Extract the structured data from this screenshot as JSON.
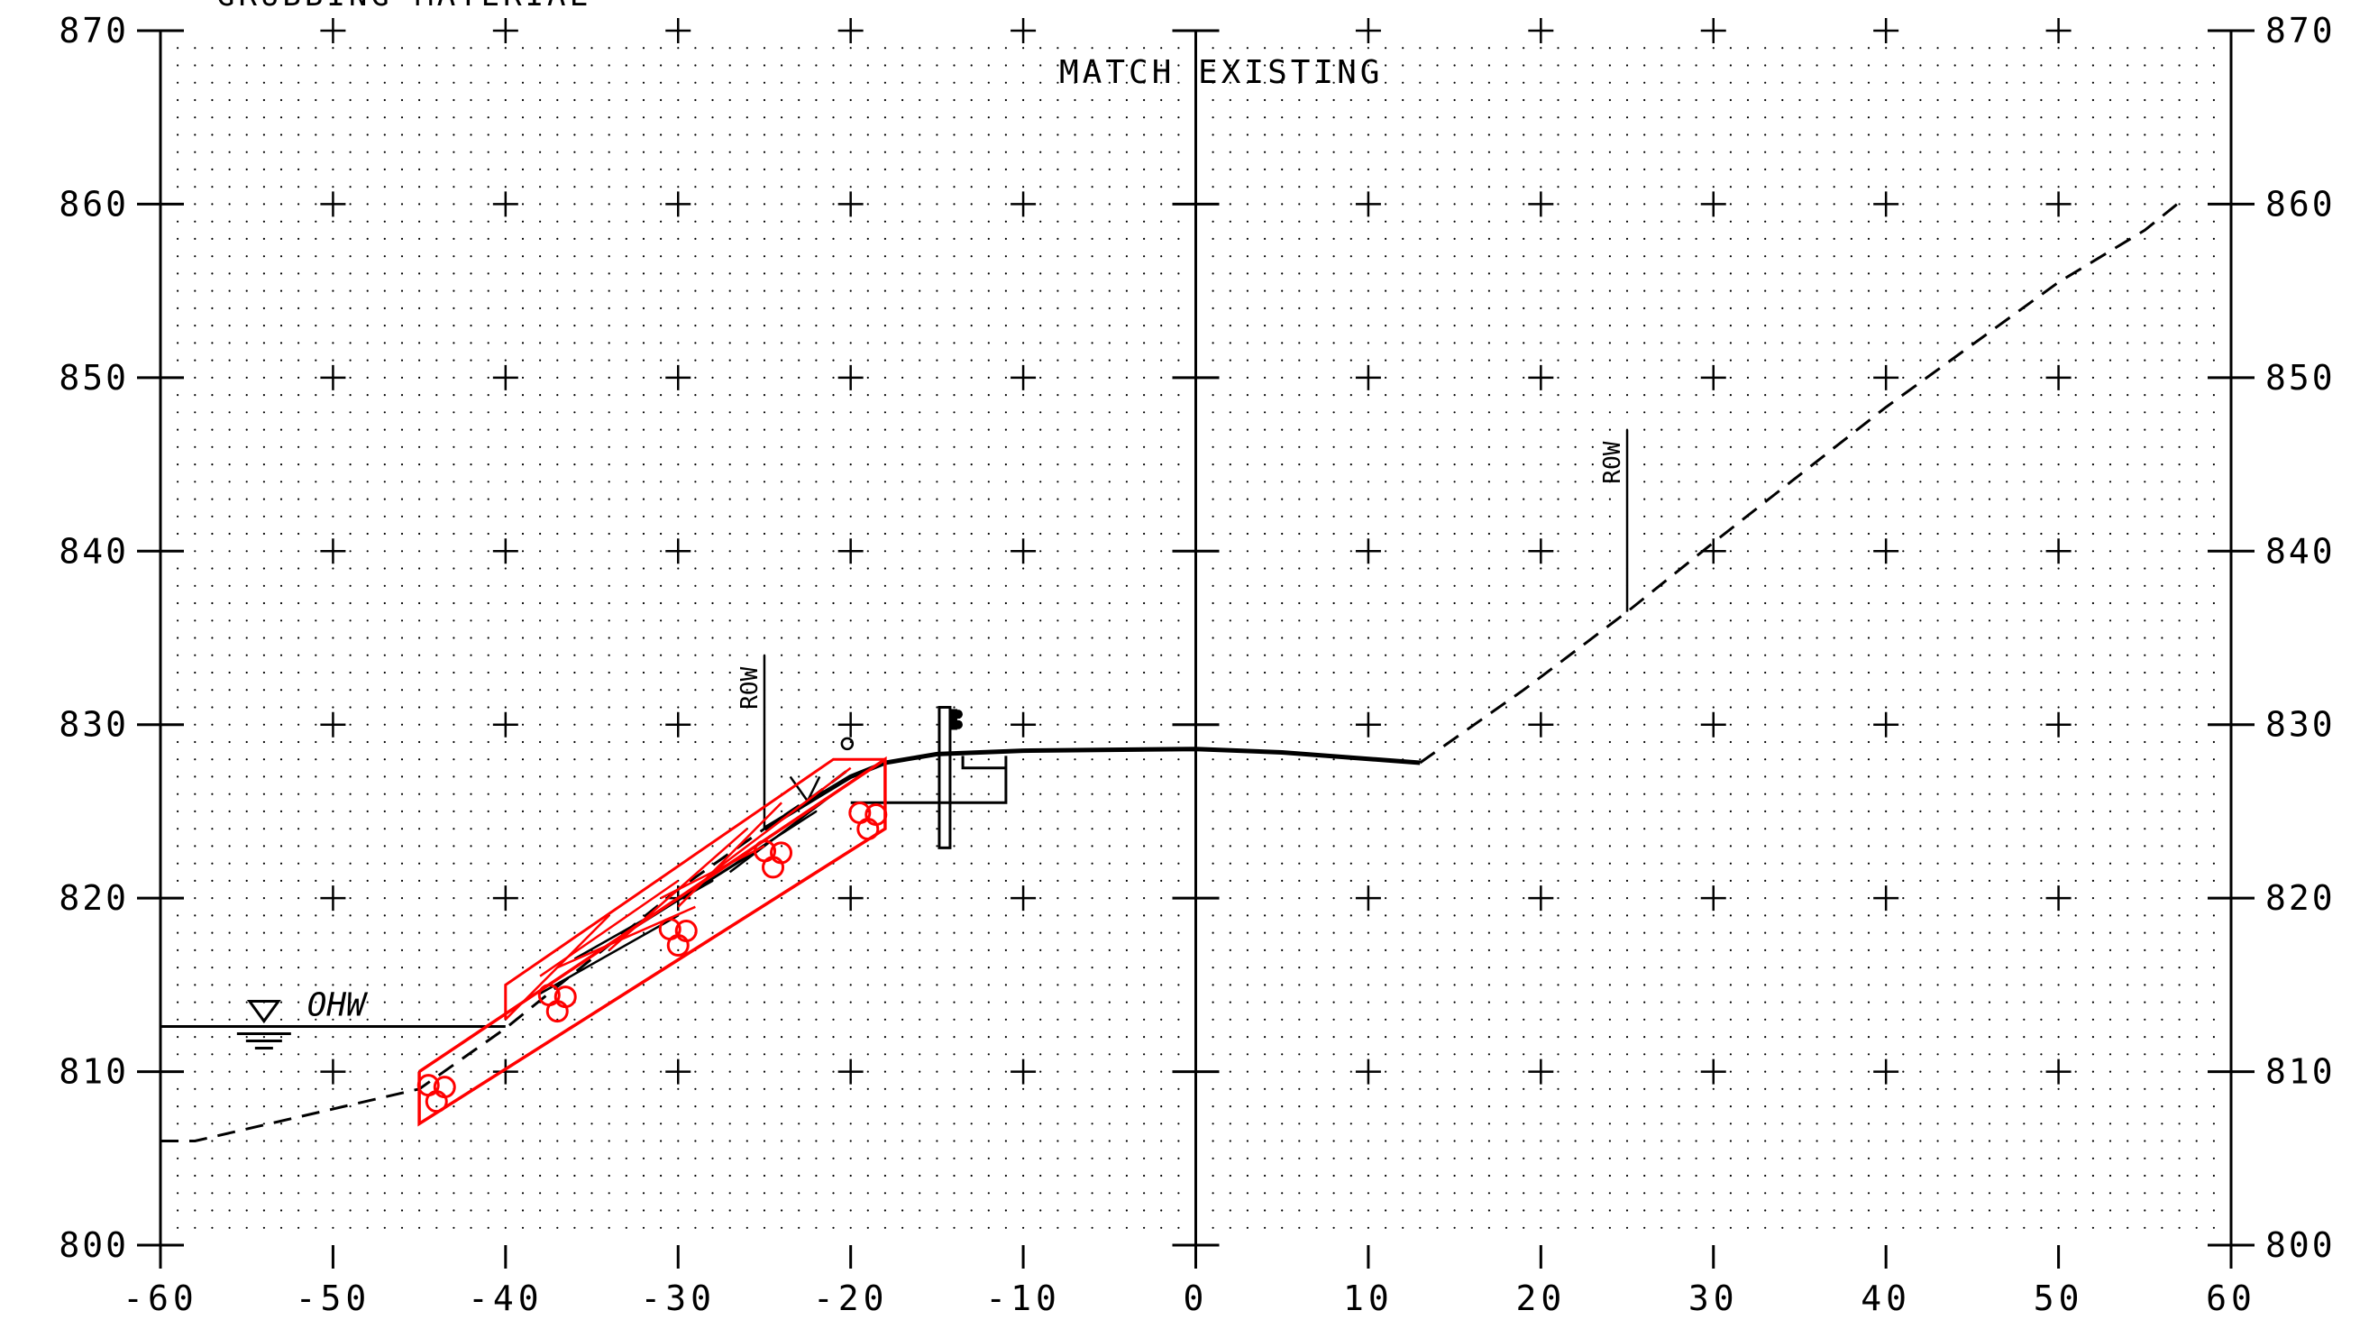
{
  "top_note": "GRUBBING MATERIAL",
  "annotations": {
    "match_existing": "MATCH EXISTING",
    "row_left": "ROW",
    "row_right": "ROW",
    "ohw": "OHW"
  },
  "colors": {
    "ink": "#000000",
    "riprap": "#ff0000",
    "grid_dot": "#000000"
  },
  "chart_data": {
    "type": "cross-section",
    "x_ticks": [
      "-60",
      "-50",
      "-40",
      "-30",
      "-20",
      "-10",
      "0",
      "10",
      "20",
      "30",
      "40",
      "50",
      "60"
    ],
    "y_ticks": [
      "800",
      "810",
      "820",
      "830",
      "840",
      "850",
      "860",
      "870"
    ],
    "xlim": [
      -60,
      60
    ],
    "ylim": [
      800,
      870
    ],
    "grid": "dotted",
    "existing_ground_left": [
      [
        -60,
        806
      ],
      [
        -58,
        806
      ],
      [
        -45,
        809
      ],
      [
        -40,
        812.5
      ],
      [
        -35,
        816.5
      ],
      [
        -30,
        820.5
      ],
      [
        -25,
        824
      ],
      [
        -22,
        826
      ],
      [
        -20,
        827.5
      ]
    ],
    "existing_ground_right": [
      [
        13,
        827.8
      ],
      [
        19,
        832
      ],
      [
        25,
        836.5
      ],
      [
        30,
        840.5
      ],
      [
        40,
        848.3
      ],
      [
        50,
        855.5
      ],
      [
        55,
        858.5
      ],
      [
        57,
        860.1
      ]
    ],
    "proposed_surface": [
      [
        -25,
        824
      ],
      [
        -22,
        825.8
      ],
      [
        -20,
        827
      ],
      [
        -18,
        827.8
      ],
      [
        -15,
        828.3
      ],
      [
        -10,
        828.5
      ],
      [
        0,
        828.6
      ],
      [
        5,
        828.4
      ],
      [
        13,
        827.8
      ]
    ],
    "pavement_base": [
      [
        -20,
        825.5
      ],
      [
        -11,
        825.5
      ],
      [
        -11,
        828.2
      ]
    ],
    "pavement_edge": [
      [
        -13.5,
        828.2
      ],
      [
        -13.5,
        827.5
      ],
      [
        -11,
        827.5
      ]
    ],
    "water_line": [
      [
        -60,
        812.6
      ],
      [
        -40,
        812.6
      ]
    ],
    "riprap_outer": [
      [
        -45,
        810
      ],
      [
        -18,
        828
      ],
      [
        -18,
        824
      ],
      [
        -45,
        807
      ]
    ],
    "riprap_inner": [
      [
        -40,
        813
      ],
      [
        -40,
        815
      ],
      [
        -21,
        828
      ],
      [
        -18,
        828
      ]
    ],
    "row_left_x": -25,
    "row_right_x": 25,
    "row_left_ground_y": 824,
    "row_right_ground_y": 836.5,
    "guardrail_post_x": -14.5
  }
}
